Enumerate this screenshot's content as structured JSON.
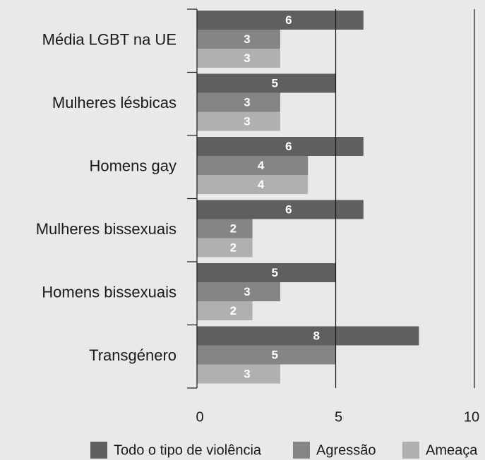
{
  "chart_data": {
    "type": "bar",
    "orientation": "horizontal",
    "categories": [
      "Média LGBT na UE",
      "Mulheres lésbicas",
      "Homens gay",
      "Mulheres bissexuais",
      "Homens bissexuais",
      "Transgénero"
    ],
    "series": [
      {
        "name": "Todo o tipo de violência",
        "color": "#5f5f5f",
        "values": [
          6,
          5,
          6,
          6,
          5,
          8
        ]
      },
      {
        "name": "Agressão",
        "color": "#858585",
        "values": [
          3,
          3,
          4,
          2,
          3,
          5
        ]
      },
      {
        "name": "Ameaça",
        "color": "#b0b0b0",
        "values": [
          3,
          3,
          4,
          2,
          2,
          3
        ]
      }
    ],
    "xlim": [
      0,
      10
    ],
    "xticks": [
      0,
      5,
      10
    ],
    "grid": true,
    "legend": "bottom"
  }
}
